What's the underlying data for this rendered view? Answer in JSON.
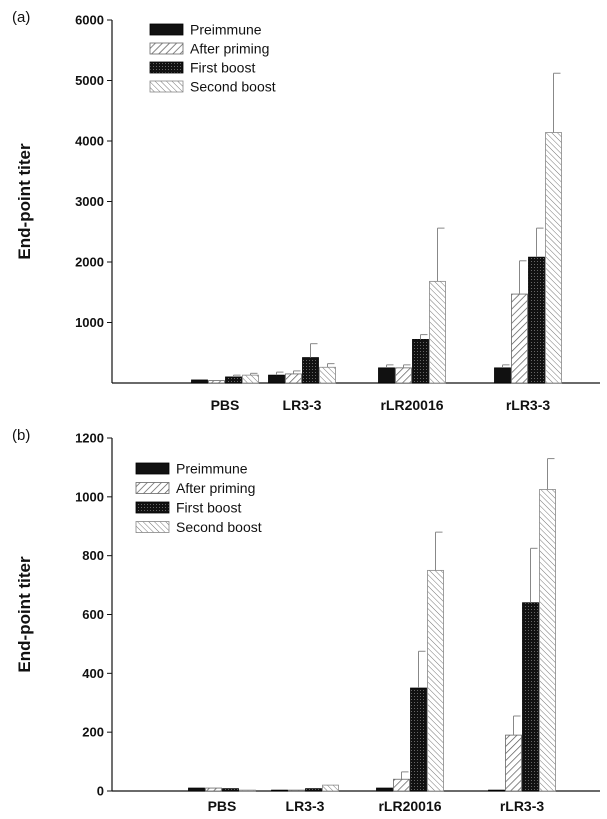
{
  "chart_data": [
    {
      "panel": "(a)",
      "type": "bar",
      "ylabel": "End-point titer",
      "ylim": [
        0,
        6000
      ],
      "yticks": [
        1000,
        2000,
        3000,
        4000,
        5000,
        6000
      ],
      "categories": [
        "PBS",
        "LR3-3",
        "rLR20016",
        "rLR3-3"
      ],
      "legend_position": "top-left",
      "series": [
        {
          "name": "Preimmune",
          "values": [
            50,
            130,
            250,
            250
          ],
          "errors": [
            0,
            50,
            50,
            50
          ]
        },
        {
          "name": "After priming",
          "values": [
            40,
            150,
            250,
            1470
          ],
          "errors": [
            0,
            50,
            50,
            550
          ]
        },
        {
          "name": "First boost",
          "values": [
            100,
            420,
            720,
            2080
          ],
          "errors": [
            30,
            230,
            80,
            480
          ]
        },
        {
          "name": "Second boost",
          "values": [
            130,
            260,
            1680,
            4140
          ],
          "errors": [
            30,
            60,
            880,
            980
          ]
        }
      ]
    },
    {
      "panel": "(b)",
      "type": "bar",
      "ylabel": "End-point titer",
      "ylim": [
        0,
        1200
      ],
      "yticks": [
        0,
        200,
        400,
        600,
        800,
        1000,
        1200
      ],
      "categories": [
        "PBS",
        "LR3-3",
        "rLR20016",
        "rLR3-3"
      ],
      "legend_position": "top-left",
      "series": [
        {
          "name": "Preimmune",
          "values": [
            10,
            3,
            10,
            3
          ],
          "errors": [
            0,
            0,
            0,
            0
          ]
        },
        {
          "name": "After priming",
          "values": [
            10,
            3,
            40,
            190
          ],
          "errors": [
            0,
            0,
            25,
            65
          ]
        },
        {
          "name": "First boost",
          "values": [
            8,
            8,
            350,
            640
          ],
          "errors": [
            0,
            0,
            125,
            185
          ]
        },
        {
          "name": "Second boost",
          "values": [
            3,
            20,
            750,
            1025
          ],
          "errors": [
            0,
            0,
            130,
            105
          ]
        }
      ]
    }
  ]
}
